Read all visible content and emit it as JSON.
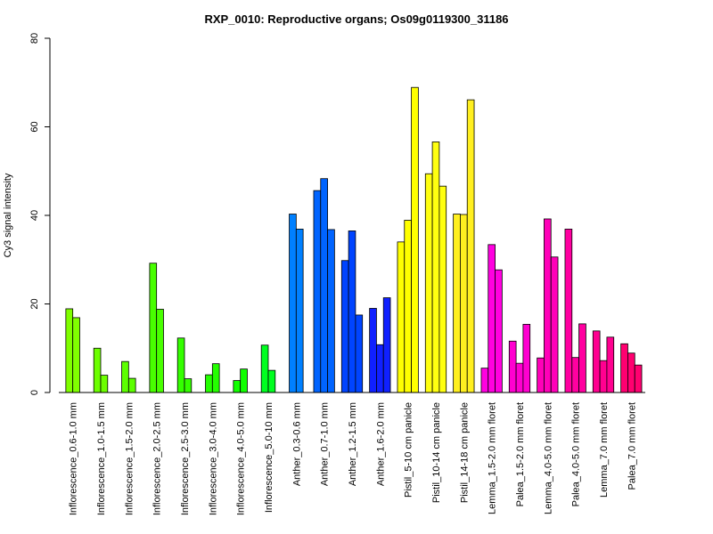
{
  "chart_data": {
    "type": "bar",
    "title": "RXP_0010: Reproductive organs; Os09g0119300_31186",
    "xlabel": "",
    "ylabel": "Cy3 signal intensity",
    "ylim": [
      0,
      80
    ],
    "yticks": [
      0,
      20,
      40,
      60,
      80
    ],
    "grid": false,
    "legend": "none",
    "categories": [
      "Inflorescence_0.6-1.0 mm",
      "Inflorescence_1.0-1.5 mm",
      "Inflorescence_1.5-2.0 mm",
      "Inflorescence_2.0-2.5 mm",
      "Inflorescence_2.5-3.0 mm",
      "Inflorescence_3.0-4.0 mm",
      "Inflorescence_4.0-5.0 mm",
      "Inflorescence_5.0-10 mm",
      "Anther_0.3-0.6 mm",
      "Anther_0.7-1.0 mm",
      "Anther_1.2-1.5 mm",
      "Anther_1.6-2.0 mm",
      "Pistil_5-10 cm panicle",
      "Pistil_10-14 cm panicle",
      "Pistil_14-18 cm panicle",
      "Lemma_1.5-2.0 mm floret",
      "Palea_1.5-2.0 mm floret",
      "Lemma_4.0-5.0 mm floret",
      "Palea_4.0-5.0 mm floret",
      "Lemma_7.0 mm floret",
      "Palea_7.0 mm floret"
    ],
    "groups": [
      {
        "values": [
          18.9,
          16.9
        ],
        "color": "#80ff00"
      },
      {
        "values": [
          10.0,
          3.9
        ],
        "color": "#6cff00"
      },
      {
        "values": [
          7.0,
          3.2
        ],
        "color": "#5cff00"
      },
      {
        "values": [
          29.2,
          18.8
        ],
        "color": "#48ff00"
      },
      {
        "values": [
          12.3,
          3.1
        ],
        "color": "#34ff00"
      },
      {
        "values": [
          4.0,
          6.5
        ],
        "color": "#24ff00"
      },
      {
        "values": [
          2.7,
          5.3
        ],
        "color": "#10ff00"
      },
      {
        "values": [
          10.7,
          5.0
        ],
        "color": "#00ff20"
      },
      {
        "values": [
          40.3,
          36.9
        ],
        "color": "#0080ff"
      },
      {
        "values": [
          45.6,
          48.3,
          36.8
        ],
        "color": "#0064ff"
      },
      {
        "values": [
          29.8,
          36.5,
          17.5
        ],
        "color": "#0044ff"
      },
      {
        "values": [
          19.0,
          10.8,
          21.4
        ],
        "color": "#1020ff"
      },
      {
        "values": [
          34.0,
          38.9,
          68.9
        ],
        "color": "#ffff00"
      },
      {
        "values": [
          49.4,
          56.6,
          46.6
        ],
        "color": "#ffff10"
      },
      {
        "values": [
          40.3,
          40.2,
          66.1
        ],
        "color": "#ffef20"
      },
      {
        "values": [
          5.5,
          33.4,
          27.7
        ],
        "color": "#ff00e0"
      },
      {
        "values": [
          11.6,
          6.6,
          15.4
        ],
        "color": "#ff00d0"
      },
      {
        "values": [
          7.8,
          39.2,
          30.6
        ],
        "color": "#ff00b8"
      },
      {
        "values": [
          36.9,
          7.9,
          15.5
        ],
        "color": "#ff00a0"
      },
      {
        "values": [
          13.9,
          7.2,
          12.5
        ],
        "color": "#ff0090"
      },
      {
        "values": [
          11.0,
          8.9,
          6.2
        ],
        "color": "#ff0070"
      }
    ]
  }
}
